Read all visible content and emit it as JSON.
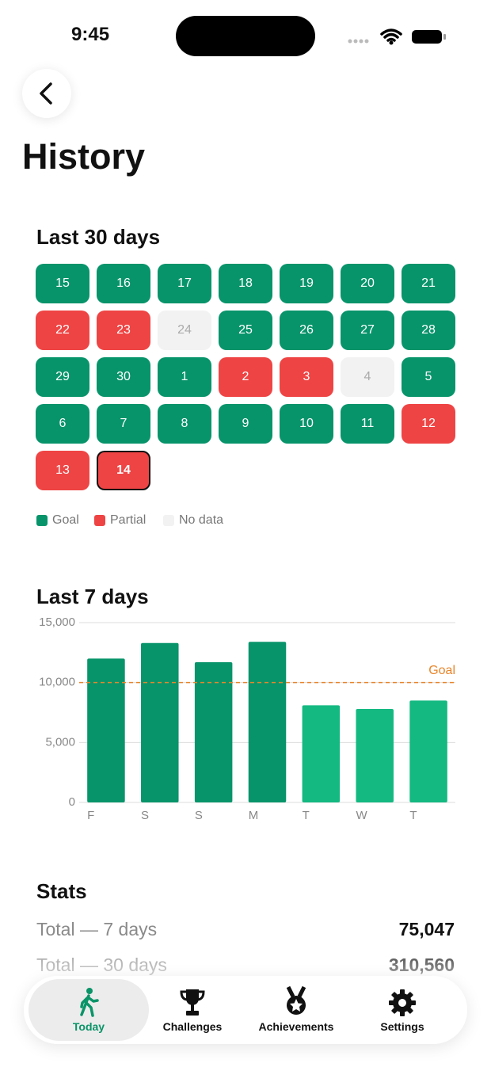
{
  "status_bar": {
    "time": "9:45"
  },
  "header": {
    "title": "History"
  },
  "calendar": {
    "title": "Last 30 days",
    "status_colors": {
      "goal": "#08946a",
      "partial": "#ef4444",
      "none": "#f2f2f2"
    },
    "days": [
      {
        "day": 15,
        "status": "goal"
      },
      {
        "day": 16,
        "status": "goal"
      },
      {
        "day": 17,
        "status": "goal"
      },
      {
        "day": 18,
        "status": "goal"
      },
      {
        "day": 19,
        "status": "goal"
      },
      {
        "day": 20,
        "status": "goal"
      },
      {
        "day": 21,
        "status": "goal"
      },
      {
        "day": 22,
        "status": "partial"
      },
      {
        "day": 23,
        "status": "partial"
      },
      {
        "day": 24,
        "status": "none"
      },
      {
        "day": 25,
        "status": "goal"
      },
      {
        "day": 26,
        "status": "goal"
      },
      {
        "day": 27,
        "status": "goal"
      },
      {
        "day": 28,
        "status": "goal"
      },
      {
        "day": 29,
        "status": "goal"
      },
      {
        "day": 30,
        "status": "goal"
      },
      {
        "day": 1,
        "status": "goal"
      },
      {
        "day": 2,
        "status": "partial"
      },
      {
        "day": 3,
        "status": "partial"
      },
      {
        "day": 4,
        "status": "none"
      },
      {
        "day": 5,
        "status": "goal"
      },
      {
        "day": 6,
        "status": "goal"
      },
      {
        "day": 7,
        "status": "goal"
      },
      {
        "day": 8,
        "status": "goal"
      },
      {
        "day": 9,
        "status": "goal"
      },
      {
        "day": 10,
        "status": "goal"
      },
      {
        "day": 11,
        "status": "goal"
      },
      {
        "day": 12,
        "status": "partial"
      },
      {
        "day": 13,
        "status": "partial"
      },
      {
        "day": 14,
        "status": "partial",
        "today": true
      }
    ],
    "legend": [
      {
        "label": "Goal",
        "status": "goal"
      },
      {
        "label": "Partial",
        "status": "partial"
      },
      {
        "label": "No data",
        "status": "none"
      }
    ]
  },
  "chart_data": {
    "type": "bar",
    "title": "Last 7 days",
    "categories": [
      "F",
      "S",
      "S",
      "M",
      "T",
      "W",
      "T"
    ],
    "values": [
      12000,
      13300,
      11700,
      13400,
      8100,
      7800,
      8500
    ],
    "colors": [
      "#08946a",
      "#08946a",
      "#08946a",
      "#08946a",
      "#14b981",
      "#14b981",
      "#14b981"
    ],
    "ylim": [
      0,
      15000
    ],
    "yticks": [
      0,
      {
        "value": 5000,
        "label": "5,000"
      },
      {
        "value": 10000,
        "label": "10,000"
      },
      {
        "value": 15000,
        "label": "15,000"
      }
    ],
    "grid": true,
    "goal": {
      "value": 10000,
      "label": "Goal",
      "color": "#e8852a"
    }
  },
  "stats": {
    "title": "Stats",
    "rows": [
      {
        "label": "Total — 7 days",
        "value": "75,047"
      },
      {
        "label": "Total — 30 days",
        "value": "310,560"
      }
    ]
  },
  "tab_bar": {
    "active": 0,
    "tabs": [
      {
        "label": "Today"
      },
      {
        "label": "Challenges"
      },
      {
        "label": "Achievements"
      },
      {
        "label": "Settings"
      }
    ]
  }
}
